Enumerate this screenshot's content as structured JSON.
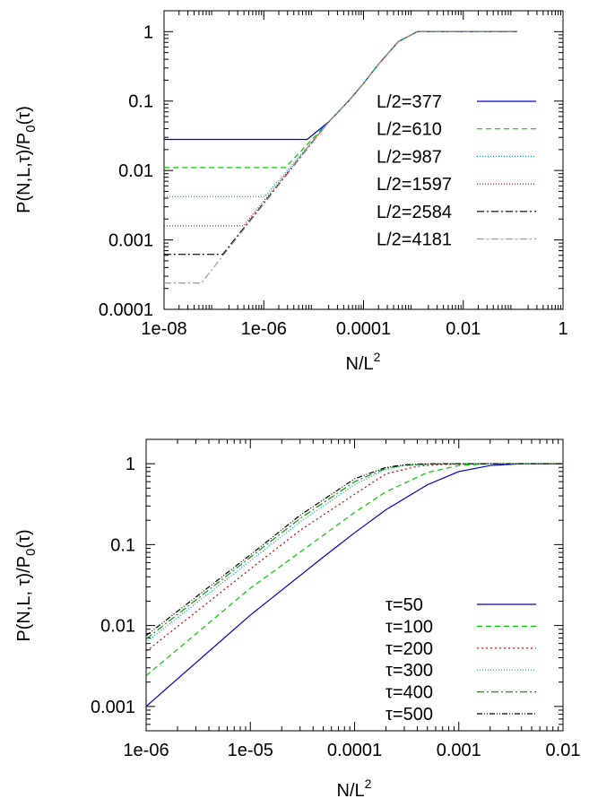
{
  "chart_data": [
    {
      "type": "line",
      "xscale": "log",
      "yscale": "log",
      "xlim": [
        1e-08,
        1
      ],
      "ylim": [
        0.0001,
        2
      ],
      "xlabel": "N/L",
      "xlabel_sup": "2",
      "ylabel_parts": [
        "P(N,L,",
        "τ",
        ")/P",
        "0",
        "(",
        "τ",
        ")"
      ],
      "xticks": [
        {
          "value": 1e-08,
          "label": "1e-08"
        },
        {
          "value": 1e-06,
          "label": "1e-06"
        },
        {
          "value": 0.0001,
          "label": "0.0001"
        },
        {
          "value": 0.01,
          "label": "0.01"
        },
        {
          "value": 1,
          "label": "1"
        }
      ],
      "yticks": [
        {
          "value": 0.0001,
          "label": "0.0001"
        },
        {
          "value": 0.001,
          "label": "0.001"
        },
        {
          "value": 0.01,
          "label": "0.01"
        },
        {
          "value": 0.1,
          "label": "0.1"
        },
        {
          "value": 1,
          "label": "1"
        }
      ],
      "legend_position": "right",
      "series": [
        {
          "name": "L/2=377",
          "color": "#0000cc",
          "dash": "",
          "x": [
            1e-08,
            7.4e-06,
            2e-05,
            5e-05,
            0.0001,
            0.0002,
            0.0005,
            0.0012,
            0.12
          ],
          "y": [
            0.028,
            0.028,
            0.05,
            0.1,
            0.18,
            0.34,
            0.72,
            1,
            1
          ]
        },
        {
          "name": "L/2=610",
          "color": "#00cc00",
          "dash": "6,4",
          "x": [
            1e-08,
            2.7e-06,
            2e-05,
            5e-05,
            0.0001,
            0.0002,
            0.0005,
            0.0012,
            0.12
          ],
          "y": [
            0.011,
            0.011,
            0.05,
            0.1,
            0.18,
            0.34,
            0.72,
            1,
            1
          ]
        },
        {
          "name": "L/2=987",
          "color": "#0099cc",
          "dash": "1,2",
          "x": [
            1e-08,
            1.05e-06,
            2e-05,
            5e-05,
            0.0001,
            0.0002,
            0.0005,
            0.0012,
            0.12
          ],
          "y": [
            0.0042,
            0.0042,
            0.05,
            0.1,
            0.18,
            0.34,
            0.72,
            1,
            1
          ]
        },
        {
          "name": "L/2=1597",
          "color": "#cc0000",
          "dash": "1,2",
          "x": [
            1e-08,
            3.9e-07,
            2e-05,
            5e-05,
            0.0001,
            0.0002,
            0.0005,
            0.0012,
            0.12
          ],
          "y": [
            0.0016,
            0.0016,
            0.05,
            0.1,
            0.18,
            0.34,
            0.72,
            1,
            1
          ]
        },
        {
          "name": "L/2=2584",
          "color": "#000000",
          "dash": "8,3,2,3",
          "x": [
            1e-08,
            1.5e-07,
            2e-05,
            5e-05,
            0.0001,
            0.0002,
            0.0005,
            0.0012,
            0.12
          ],
          "y": [
            0.00062,
            0.00062,
            0.05,
            0.1,
            0.18,
            0.34,
            0.72,
            1,
            1
          ]
        },
        {
          "name": "L/2=4181",
          "color": "#999999",
          "dash": "8,3,2,3",
          "x": [
            1e-08,
            5.6e-08,
            2e-05,
            5e-05,
            0.0001,
            0.0002,
            0.0005,
            0.0012,
            0.12
          ],
          "y": [
            0.00024,
            0.00024,
            0.05,
            0.1,
            0.18,
            0.34,
            0.72,
            1,
            1
          ]
        }
      ]
    },
    {
      "type": "line",
      "xscale": "log",
      "yscale": "log",
      "xlim": [
        1e-06,
        0.01
      ],
      "ylim": [
        0.0005,
        2
      ],
      "xlabel": "N/L",
      "xlabel_sup": "2",
      "ylabel_parts": [
        "P(N,L, ",
        "τ",
        ")/P",
        "0",
        "(",
        "τ",
        ")"
      ],
      "xticks": [
        {
          "value": 1e-06,
          "label": "1e-06"
        },
        {
          "value": 1e-05,
          "label": "1e-05"
        },
        {
          "value": 0.0001,
          "label": "0.0001"
        },
        {
          "value": 0.001,
          "label": "0.001"
        },
        {
          "value": 0.01,
          "label": "0.01"
        }
      ],
      "yticks": [
        {
          "value": 0.001,
          "label": "0.001"
        },
        {
          "value": 0.01,
          "label": "0.01"
        },
        {
          "value": 0.1,
          "label": "0.1"
        },
        {
          "value": 1,
          "label": "1"
        }
      ],
      "legend_position": "bottom-right",
      "series": [
        {
          "name": "τ=50",
          "color": "#0000cc",
          "dash": "",
          "x": [
            1e-06,
            1e-05,
            5e-05,
            0.0001,
            0.0002,
            0.0005,
            0.001,
            0.002,
            0.004,
            0.01
          ],
          "y": [
            0.001,
            0.0135,
            0.07,
            0.14,
            0.27,
            0.55,
            0.8,
            0.95,
            1,
            1
          ]
        },
        {
          "name": "τ=100",
          "color": "#00cc00",
          "dash": "6,4",
          "x": [
            1e-06,
            1e-05,
            5e-05,
            0.0001,
            0.0002,
            0.0005,
            0.001,
            0.002,
            0.004,
            0.01
          ],
          "y": [
            0.0024,
            0.029,
            0.13,
            0.25,
            0.45,
            0.78,
            0.95,
            1,
            1,
            1
          ]
        },
        {
          "name": "τ=200",
          "color": "#cc0000",
          "dash": "2,3",
          "x": [
            1e-06,
            1e-05,
            3e-05,
            0.0001,
            0.0002,
            0.0004,
            0.0007,
            0.0015,
            0.01
          ],
          "y": [
            0.0048,
            0.05,
            0.15,
            0.42,
            0.75,
            0.93,
            0.98,
            1,
            1
          ]
        },
        {
          "name": "τ=300",
          "color": "#0099cc",
          "dash": "1,2",
          "x": [
            1e-06,
            1e-05,
            3e-05,
            0.0001,
            0.0002,
            0.0003,
            0.0005,
            0.001,
            0.01
          ],
          "y": [
            0.0062,
            0.063,
            0.19,
            0.55,
            0.85,
            0.95,
            0.99,
            1,
            1
          ]
        },
        {
          "name": "τ=400",
          "color": "#009900",
          "dash": "8,3,2,3",
          "x": [
            1e-06,
            1e-05,
            3e-05,
            0.0001,
            0.0002,
            0.0003,
            0.0005,
            0.001,
            0.01
          ],
          "y": [
            0.0068,
            0.07,
            0.21,
            0.6,
            0.88,
            0.96,
            0.99,
            1,
            1
          ]
        },
        {
          "name": "τ=500",
          "color": "#000000",
          "dash": "6,2,1,2,1,2",
          "x": [
            1e-06,
            1e-05,
            3e-05,
            0.0001,
            0.0002,
            0.0003,
            0.0005,
            0.001,
            0.01
          ],
          "y": [
            0.0075,
            0.075,
            0.23,
            0.65,
            0.9,
            0.97,
            1,
            1,
            1
          ]
        }
      ]
    }
  ]
}
